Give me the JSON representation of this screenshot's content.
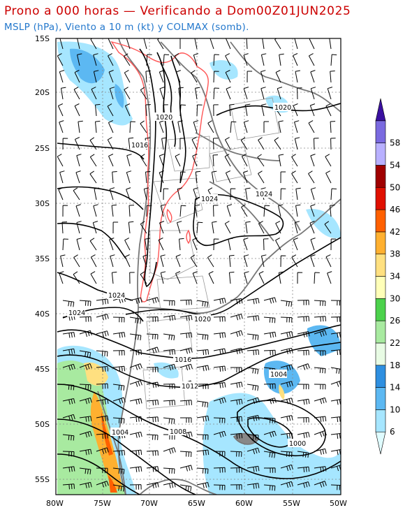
{
  "header": {
    "title": "Prono a 000 horas — Verificando a Dom00Z01JUN2025",
    "subtitle": "MSLP (hPa), Viento a 10 m (kt) y COLMAX (somb)."
  },
  "map": {
    "lon_labels": [
      "80W",
      "75W",
      "70W",
      "65W",
      "60W",
      "55W",
      "50W"
    ],
    "lat_labels": [
      "15S",
      "20S",
      "25S",
      "30S",
      "35S",
      "40S",
      "45S",
      "50S",
      "55S"
    ],
    "isobar_labels": [
      {
        "text": "1020",
        "id": "iso-1020-north"
      },
      {
        "text": "1016",
        "id": "iso-1016-north"
      },
      {
        "text": "1020",
        "id": "iso-1020-east"
      },
      {
        "text": "1024",
        "id": "iso-1024-center"
      },
      {
        "text": "1024",
        "id": "iso-1024-east"
      },
      {
        "text": "1024",
        "id": "iso-1024-south"
      },
      {
        "text": "1024",
        "id": "iso-1024-west"
      },
      {
        "text": "1020",
        "id": "iso-1020-south"
      },
      {
        "text": "1016",
        "id": "iso-1016-south"
      },
      {
        "text": "1012",
        "id": "iso-1012"
      },
      {
        "text": "1008",
        "id": "iso-1008"
      },
      {
        "text": "1004",
        "id": "iso-1004-west"
      },
      {
        "text": "1004",
        "id": "iso-1004-east"
      },
      {
        "text": "1000",
        "id": "iso-1000"
      }
    ]
  },
  "colorbar": {
    "labels": [
      "6",
      "10",
      "14",
      "18",
      "22",
      "26",
      "30",
      "34",
      "38",
      "42",
      "46",
      "50",
      "54",
      "58"
    ],
    "colors": [
      "#dffcff",
      "#a6e6ff",
      "#5cb8f2",
      "#2e8fe0",
      "#e8fbe4",
      "#a8eaa0",
      "#4cd24c",
      "#ffffb8",
      "#ffe080",
      "#ffb030",
      "#ff6000",
      "#e01000",
      "#a00000",
      "#b8b0ff",
      "#7a6ae0",
      "#3a10a0"
    ]
  }
}
